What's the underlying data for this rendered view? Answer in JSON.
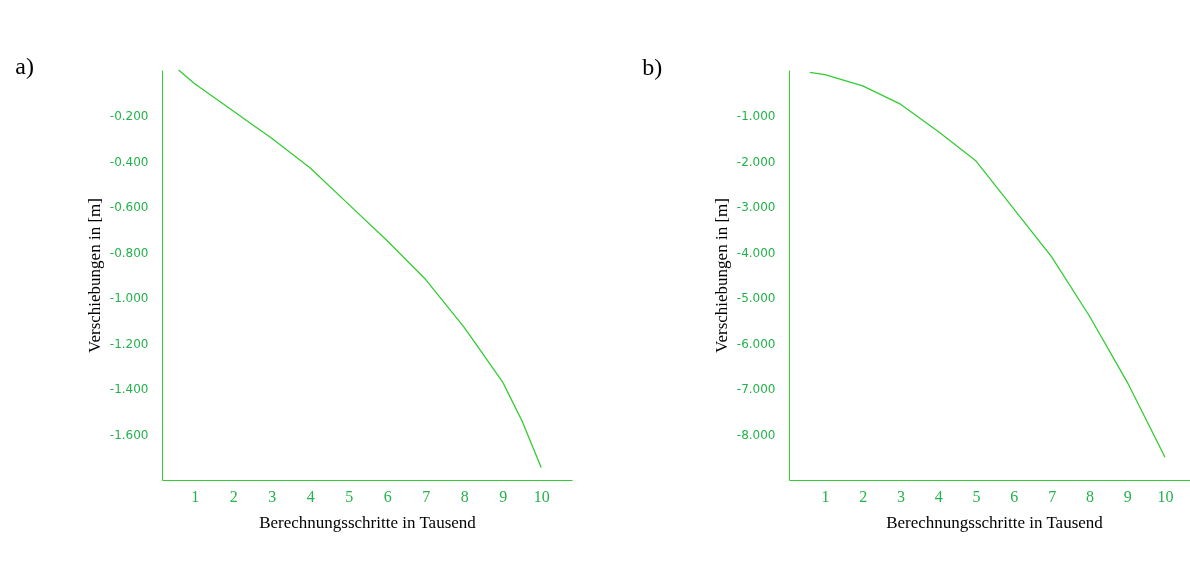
{
  "chart_data": [
    {
      "type": "line",
      "title": "a)",
      "xlabel": "Berechnungsschritte in Tausend",
      "ylabel": "Verschiebungen in [m]",
      "xlim": [
        0.15,
        10.8
      ],
      "ylim": [
        -1.8,
        0
      ],
      "xticks": [
        1,
        2,
        3,
        4,
        5,
        6,
        7,
        8,
        9,
        10
      ],
      "yticks": [
        {
          "value": -0.2,
          "label": "-0.200"
        },
        {
          "value": -0.4,
          "label": "-0.400"
        },
        {
          "value": -0.6,
          "label": "-0.600"
        },
        {
          "value": -0.8,
          "label": "-0.800"
        },
        {
          "value": -1.0,
          "label": "-1.000"
        },
        {
          "value": -1.2,
          "label": "-1.200"
        },
        {
          "value": -1.4,
          "label": "-1.400"
        },
        {
          "value": -1.6,
          "label": "-1.600"
        }
      ],
      "x": [
        0.58,
        1,
        2,
        3,
        4,
        5,
        6,
        7,
        8,
        9,
        9.5,
        10
      ],
      "series": [
        {
          "color": "#33cc33",
          "values": [
            0,
            -0.06,
            -0.18,
            -0.3,
            -0.43,
            -0.59,
            -0.75,
            -0.92,
            -1.13,
            -1.37,
            -1.54,
            -1.745
          ]
        }
      ]
    },
    {
      "type": "line",
      "title": "b)",
      "xlabel": "Berechnungsschritte in Tausend",
      "ylabel": "Verschiebungen in [m]",
      "xlim": [
        0.05,
        10.9
      ],
      "ylim": [
        -9,
        0
      ],
      "xticks": [
        1,
        2,
        3,
        4,
        5,
        6,
        7,
        8,
        9,
        10
      ],
      "yticks": [
        {
          "value": -1,
          "label": "-1.000"
        },
        {
          "value": -2,
          "label": "-2.000"
        },
        {
          "value": -3,
          "label": "-3.000"
        },
        {
          "value": -4,
          "label": "-4.000"
        },
        {
          "value": -5,
          "label": "-5.000"
        },
        {
          "value": -6,
          "label": "-6.000"
        },
        {
          "value": -7,
          "label": "-7.000"
        },
        {
          "value": -8,
          "label": "-8.000"
        }
      ],
      "x": [
        0.6,
        1,
        2,
        3,
        4,
        5,
        6,
        7,
        8,
        9,
        10
      ],
      "series": [
        {
          "color": "#33cc33",
          "values": [
            -0.05,
            -0.1,
            -0.35,
            -0.75,
            -1.35,
            -2.0,
            -3.05,
            -4.1,
            -5.4,
            -6.85,
            -8.5
          ]
        }
      ]
    }
  ]
}
